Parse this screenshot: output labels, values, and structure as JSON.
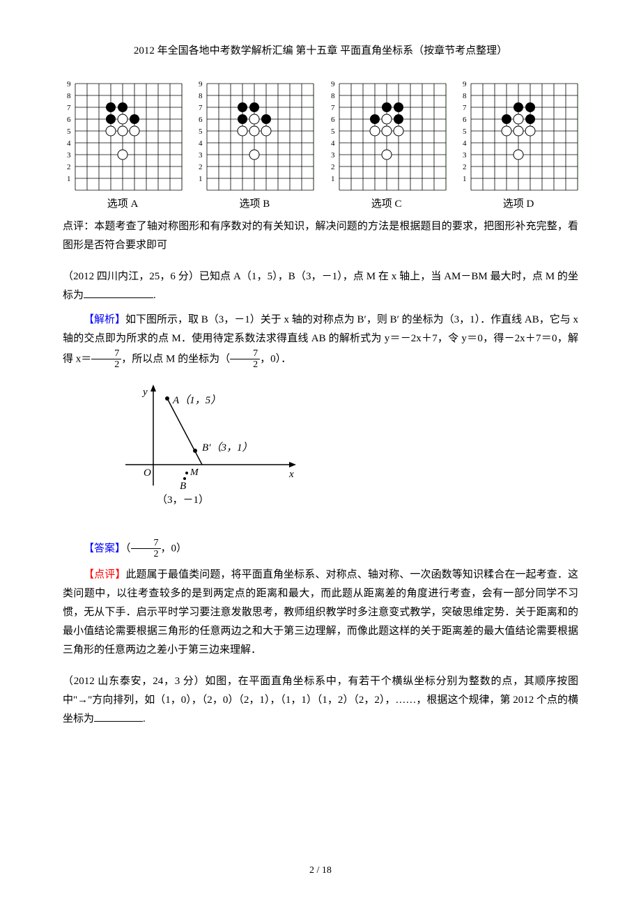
{
  "header": "2012 年全国各地中考数学解析汇编 第十五章 平面直角坐标系（按章节考点整理）",
  "options": {
    "a": "选项 A",
    "b": "选项 B",
    "c": "选项 C",
    "d": "选项 D"
  },
  "grid": {
    "size": 9,
    "cell": 17,
    "bg_right": "#d4f0c8",
    "dots_black_a": [
      [
        3,
        7
      ],
      [
        4,
        7
      ],
      [
        3,
        6
      ],
      [
        5,
        6
      ]
    ],
    "dots_white_a": [
      [
        4,
        6
      ],
      [
        3,
        5
      ],
      [
        4,
        5
      ],
      [
        5,
        5
      ],
      [
        4,
        3
      ]
    ],
    "dots_black_b": [
      [
        3,
        7
      ],
      [
        4,
        7
      ],
      [
        3,
        6
      ],
      [
        5,
        6
      ]
    ],
    "dots_white_b": [
      [
        4,
        6
      ],
      [
        3,
        5
      ],
      [
        4,
        5
      ],
      [
        5,
        5
      ],
      [
        4,
        3
      ]
    ],
    "dots_black_c": [
      [
        4,
        7
      ],
      [
        5,
        7
      ],
      [
        3,
        6
      ],
      [
        5,
        6
      ]
    ],
    "dots_white_c": [
      [
        4,
        6
      ],
      [
        3,
        5
      ],
      [
        4,
        5
      ],
      [
        5,
        5
      ],
      [
        4,
        3
      ]
    ],
    "dots_black_d": [
      [
        4,
        7
      ],
      [
        5,
        7
      ],
      [
        3,
        6
      ],
      [
        5,
        6
      ]
    ],
    "dots_white_d": [
      [
        4,
        6
      ],
      [
        3,
        5
      ],
      [
        4,
        5
      ],
      [
        5,
        5
      ],
      [
        4,
        3
      ]
    ]
  },
  "p1": "点评：本题考查了轴对称图形和有序数对的有关知识，解决问题的方法是根据题目的要求，把图形补充完整，看图形是否符合要求即可",
  "q1": {
    "prefix": "（2012 四川内江，25，6 分）已知点 A（1，5），B（3，－1），点 M 在 x 轴上，当 AM－BM 最大时，点 M 的坐标为",
    "period": "."
  },
  "analysis_label": "【解析】",
  "analysis_text1": "如下图所示，取 B（3，－1）关于 x 轴的对称点为 B′，则 B′ 的坐标为（3，1）．作直线 AB，它与 x 轴的交点即为所求的点 M．使用待定系数法求得直线 AB 的解析式为 y＝－2x＋7，令 y＝0，得－2x＋7＝0，解得 x＝",
  "analysis_text2": "，所以点 M 的坐标为（",
  "analysis_text3": "，0）．",
  "frac_num": "7",
  "frac_den": "2",
  "diagram": {
    "y_label": "y",
    "x_label": "x",
    "o_label": "O",
    "a_label": "A（1，5）",
    "b_label": "B",
    "bp_label": "B′（3，1）",
    "m_label": "M",
    "b_coord": "（3，－1）"
  },
  "answer_label": "【答案】",
  "answer_text": "（",
  "answer_suffix": "，0）",
  "review_label": "【点评】",
  "review_text": "此题属于最值类问题，将平面直角坐标系、对称点、轴对称、一次函数等知识糅合在一起考查．这类问题中，以往考查较多的是到两定点的距离和最大，而此题从距离差的角度进行考查，会有一部分同学不习惯，无从下手．启示平时学习要注意发散思考，教师组织教学时多注意变式教学，突破思维定势．关于距离和的最小值结论需要根据三角形的任意两边之和大于第三边理解，而像此题这样的关于距离差的最大值结论需要根据三角形的任意两边之差小于第三边来理解．",
  "q2": {
    "text": "（2012 山东泰安，24，3 分）如图，在平面直角坐标系中，有若干个横纵坐标分别为整数的点，其顺序按图中\"→\"方向排列，如（1，0），（2，0）（2，1），（1，1）（1，2）（2，2），……，根据这个规律，第 2012 个点的横坐标为",
    "period": "."
  },
  "page": "2 / 18"
}
